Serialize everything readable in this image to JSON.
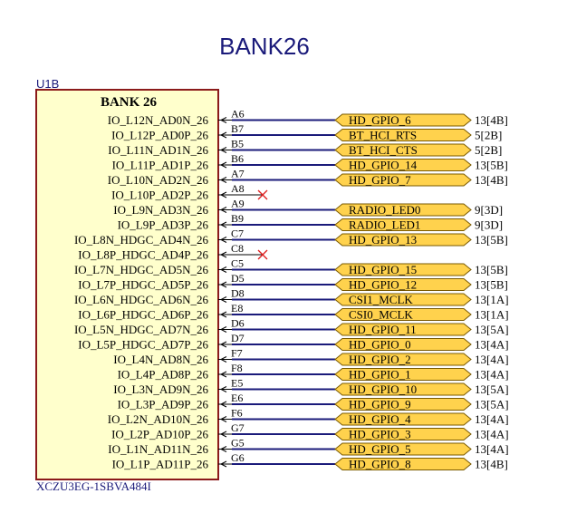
{
  "title": "BANK26",
  "designator": "U1B",
  "part_number": "XCZU3EG-1SBVA484I",
  "bank_label": "BANK 26",
  "colors": {
    "title": "#1a1a7a",
    "body_fill": "#ffffcc",
    "body_stroke": "#8b1a1a",
    "wire": "#1a1a7a",
    "port_fill": "#ffd24d",
    "port_stroke": "#7a5a00",
    "no_connect": "#e02020",
    "text": "#000000"
  },
  "pins": [
    {
      "name": "IO_L12N_AD0N_26",
      "ball": "A6",
      "net": "HD_GPIO_6",
      "ref": "13[4B]"
    },
    {
      "name": "IO_L12P_AD0P_26",
      "ball": "B7",
      "net": "BT_HCI_RTS",
      "ref": "5[2B]"
    },
    {
      "name": "IO_L11N_AD1N_26",
      "ball": "B5",
      "net": "BT_HCI_CTS",
      "ref": "5[2B]"
    },
    {
      "name": "IO_L11P_AD1P_26",
      "ball": "B6",
      "net": "HD_GPIO_14",
      "ref": "13[5B]"
    },
    {
      "name": "IO_L10N_AD2N_26",
      "ball": "A7",
      "net": "HD_GPIO_7",
      "ref": "13[4B]"
    },
    {
      "name": "IO_L10P_AD2P_26",
      "ball": "A8",
      "net": "",
      "ref": "",
      "nc": true
    },
    {
      "name": "IO_L9N_AD3N_26",
      "ball": "A9",
      "net": "RADIO_LED0",
      "ref": "9[3D]"
    },
    {
      "name": "IO_L9P_AD3P_26",
      "ball": "B9",
      "net": "RADIO_LED1",
      "ref": "9[3D]"
    },
    {
      "name": "IO_L8N_HDGC_AD4N_26",
      "ball": "C7",
      "net": "HD_GPIO_13",
      "ref": "13[5B]"
    },
    {
      "name": "IO_L8P_HDGC_AD4P_26",
      "ball": "C8",
      "net": "",
      "ref": "",
      "nc": true
    },
    {
      "name": "IO_L7N_HDGC_AD5N_26",
      "ball": "C5",
      "net": "HD_GPIO_15",
      "ref": "13[5B]"
    },
    {
      "name": "IO_L7P_HDGC_AD5P_26",
      "ball": "D5",
      "net": "HD_GPIO_12",
      "ref": "13[5B]"
    },
    {
      "name": "IO_L6N_HDGC_AD6N_26",
      "ball": "D8",
      "net": "CSI1_MCLK",
      "ref": "13[1A]"
    },
    {
      "name": "IO_L6P_HDGC_AD6P_26",
      "ball": "E8",
      "net": "CSI0_MCLK",
      "ref": "13[1A]"
    },
    {
      "name": "IO_L5N_HDGC_AD7N_26",
      "ball": "D6",
      "net": "HD_GPIO_11",
      "ref": "13[5A]"
    },
    {
      "name": "IO_L5P_HDGC_AD7P_26",
      "ball": "D7",
      "net": "HD_GPIO_0",
      "ref": "13[4A]"
    },
    {
      "name": "IO_L4N_AD8N_26",
      "ball": "F7",
      "net": "HD_GPIO_2",
      "ref": "13[4A]"
    },
    {
      "name": "IO_L4P_AD8P_26",
      "ball": "F8",
      "net": "HD_GPIO_1",
      "ref": "13[4A]"
    },
    {
      "name": "IO_L3N_AD9N_26",
      "ball": "E5",
      "net": "HD_GPIO_10",
      "ref": "13[5A]"
    },
    {
      "name": "IO_L3P_AD9P_26",
      "ball": "E6",
      "net": "HD_GPIO_9",
      "ref": "13[5A]"
    },
    {
      "name": "IO_L2N_AD10N_26",
      "ball": "F6",
      "net": "HD_GPIO_4",
      "ref": "13[4A]"
    },
    {
      "name": "IO_L2P_AD10P_26",
      "ball": "G7",
      "net": "HD_GPIO_3",
      "ref": "13[4A]"
    },
    {
      "name": "IO_L1N_AD11N_26",
      "ball": "G5",
      "net": "HD_GPIO_5",
      "ref": "13[4A]"
    },
    {
      "name": "IO_L1P_AD11P_26",
      "ball": "G6",
      "net": "HD_GPIO_8",
      "ref": "13[4B]"
    }
  ]
}
